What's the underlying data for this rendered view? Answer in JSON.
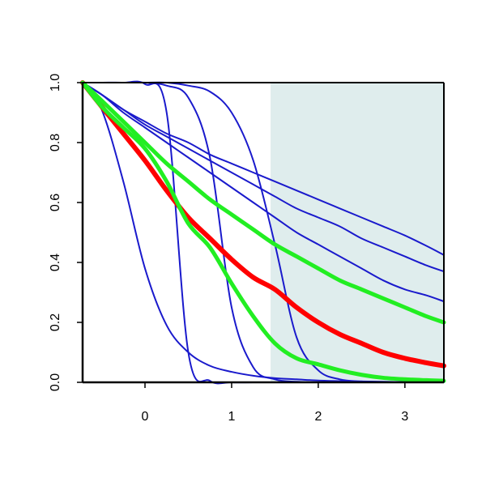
{
  "chart_data": {
    "type": "line",
    "title": "",
    "xlabel": "",
    "ylabel": "",
    "xlim": [
      -0.72,
      3.45
    ],
    "ylim": [
      0,
      1
    ],
    "x_ticks": [
      0,
      1,
      2,
      3
    ],
    "y_ticks": [
      0.0,
      0.2,
      0.4,
      0.6,
      0.8,
      1.0
    ],
    "x_tick_labels": [
      "0",
      "1",
      "2",
      "3"
    ],
    "y_tick_labels": [
      "0.0",
      "0.2",
      "0.4",
      "0.6",
      "0.8",
      "1.0"
    ],
    "grid": false,
    "shaded_region": {
      "x_from": 1.45,
      "x_to": 3.45,
      "y_from": 0,
      "y_to": 1,
      "color": "#dfeded"
    },
    "x": [
      -0.72,
      -0.5,
      -0.25,
      0.0,
      0.25,
      0.5,
      0.75,
      1.0,
      1.25,
      1.5,
      1.75,
      2.0,
      2.25,
      2.5,
      2.75,
      3.0,
      3.25,
      3.45
    ],
    "series": [
      {
        "color": "#1a1acc",
        "values": [
          1.0,
          0.91,
          0.67,
          0.38,
          0.19,
          0.1,
          0.055,
          0.035,
          0.022,
          0.014,
          0.01,
          0.006,
          0.004,
          0.003,
          0.002,
          0.001,
          0.001,
          0.001
        ]
      },
      {
        "color": "#1a1acc",
        "values": [
          1.0,
          1.0,
          1.0,
          0.995,
          0.9,
          0.1,
          0.005,
          0.0,
          0.0,
          0.0,
          0.0,
          0.0,
          0.0,
          0.0,
          0.0,
          0.0,
          0.0,
          0.0
        ]
      },
      {
        "color": "#1a1acc",
        "values": [
          1.0,
          1.0,
          1.0,
          1.0,
          0.99,
          0.95,
          0.75,
          0.25,
          0.05,
          0.01,
          0.002,
          0.0,
          0.0,
          0.0,
          0.0,
          0.0,
          0.0,
          0.0
        ]
      },
      {
        "color": "#1a1acc",
        "values": [
          1.0,
          1.0,
          1.0,
          1.0,
          1.0,
          0.99,
          0.97,
          0.9,
          0.74,
          0.46,
          0.15,
          0.04,
          0.01,
          0.003,
          0.001,
          0.0,
          0.0,
          0.0
        ]
      },
      {
        "color": "#1a1acc",
        "values": [
          1.0,
          0.96,
          0.91,
          0.87,
          0.83,
          0.8,
          0.76,
          0.73,
          0.7,
          0.67,
          0.64,
          0.61,
          0.58,
          0.55,
          0.52,
          0.49,
          0.455,
          0.425
        ]
      },
      {
        "color": "#1a1acc",
        "values": [
          1.0,
          0.96,
          0.91,
          0.86,
          0.82,
          0.78,
          0.74,
          0.7,
          0.66,
          0.62,
          0.58,
          0.55,
          0.52,
          0.48,
          0.45,
          0.42,
          0.39,
          0.37
        ]
      },
      {
        "color": "#1a1acc",
        "values": [
          1.0,
          0.96,
          0.9,
          0.85,
          0.8,
          0.75,
          0.7,
          0.65,
          0.6,
          0.55,
          0.5,
          0.46,
          0.42,
          0.38,
          0.34,
          0.31,
          0.29,
          0.27
        ]
      },
      {
        "color": "#ff0000",
        "width": 6,
        "values": [
          1.0,
          0.92,
          0.83,
          0.74,
          0.64,
          0.55,
          0.48,
          0.41,
          0.35,
          0.31,
          0.25,
          0.2,
          0.16,
          0.13,
          0.1,
          0.08,
          0.065,
          0.055
        ]
      },
      {
        "color": "#22ee22",
        "width": 5,
        "values": [
          1.0,
          0.94,
          0.87,
          0.8,
          0.73,
          0.67,
          0.61,
          0.56,
          0.51,
          0.46,
          0.42,
          0.38,
          0.34,
          0.31,
          0.28,
          0.25,
          0.22,
          0.2
        ]
      },
      {
        "color": "#22ee22",
        "width": 5,
        "values": [
          1.0,
          0.92,
          0.85,
          0.78,
          0.67,
          0.53,
          0.45,
          0.33,
          0.22,
          0.13,
          0.08,
          0.06,
          0.04,
          0.025,
          0.015,
          0.01,
          0.007,
          0.005
        ]
      }
    ]
  }
}
